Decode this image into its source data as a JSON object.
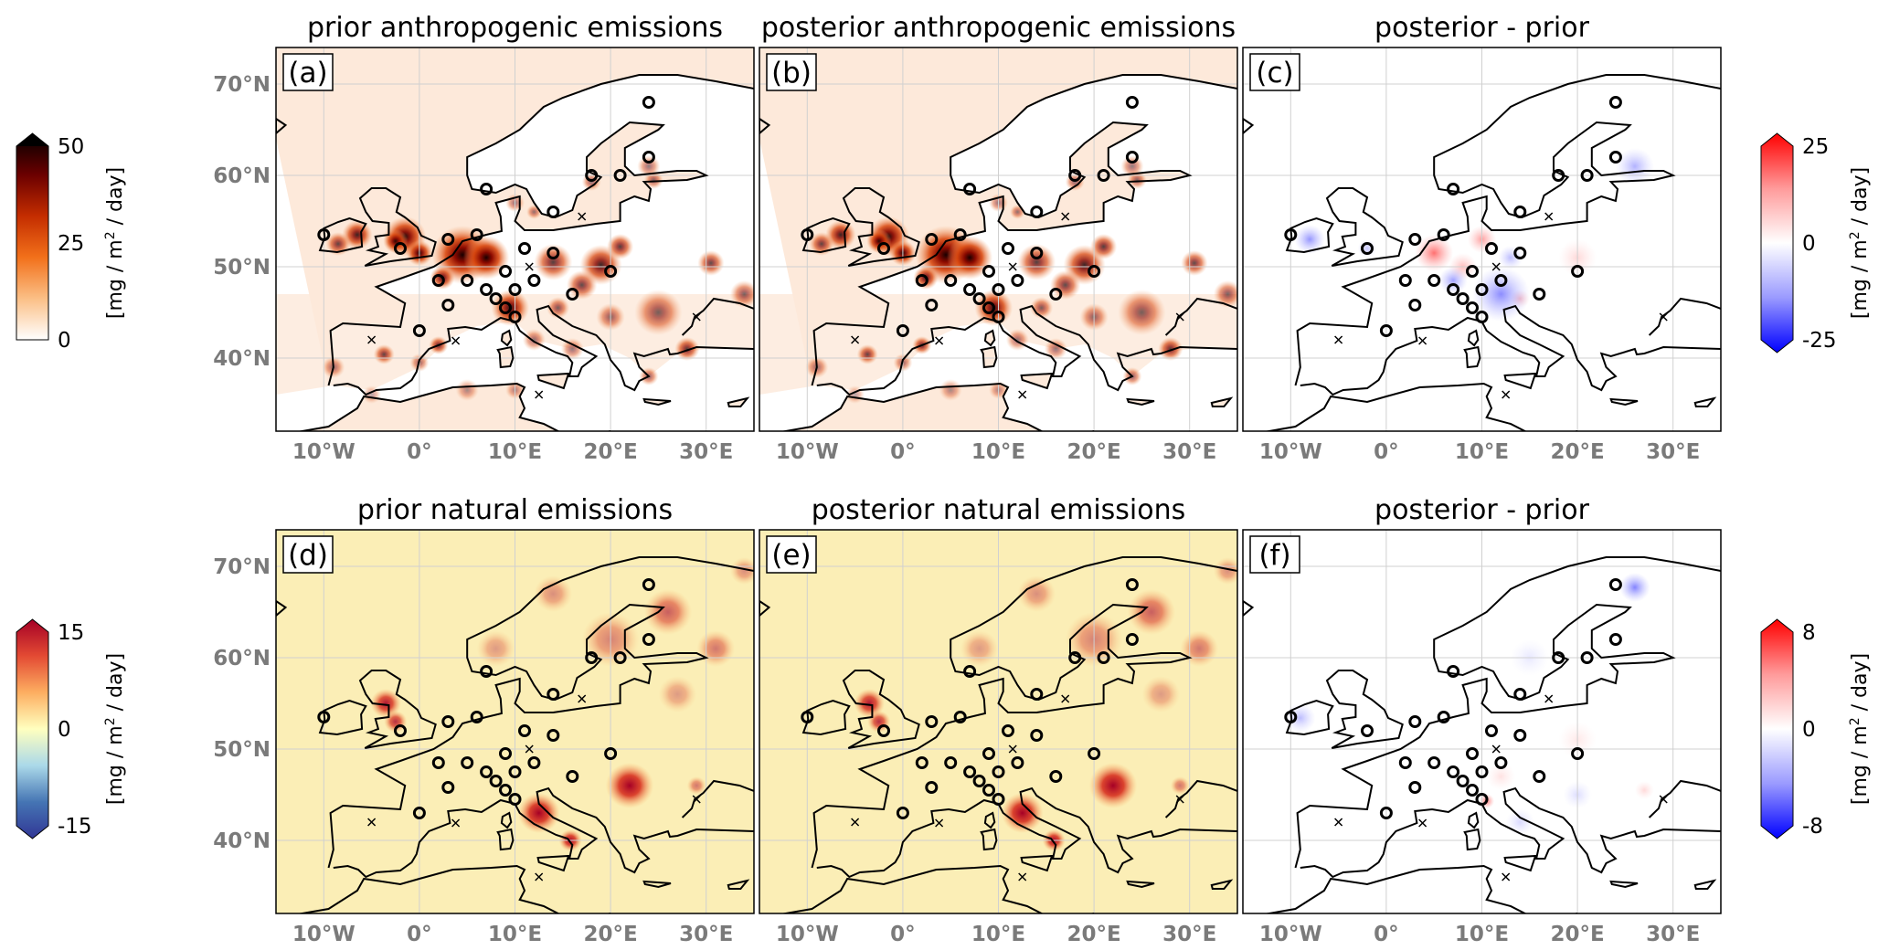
{
  "panels": [
    {
      "id": "a",
      "label": "(a)",
      "title": "prior anthropogenic emissions",
      "kind": "anthro"
    },
    {
      "id": "b",
      "label": "(b)",
      "title": "posterior anthropogenic emissions",
      "kind": "anthro"
    },
    {
      "id": "c",
      "label": "(c)",
      "title": "posterior - prior",
      "kind": "diff1"
    },
    {
      "id": "d",
      "label": "(d)",
      "title": "prior natural emissions",
      "kind": "natural"
    },
    {
      "id": "e",
      "label": "(e)",
      "title": "posterior natural emissions",
      "kind": "natural"
    },
    {
      "id": "f",
      "label": "(f)",
      "title": "posterior - prior",
      "kind": "diff2"
    }
  ],
  "axes": {
    "lon_ticks": [
      "10°W",
      "0°",
      "10°E",
      "20°E",
      "30°E"
    ],
    "lat_ticks": [
      "70°N",
      "60°N",
      "50°N",
      "40°N"
    ]
  },
  "colorbars": [
    {
      "id": "anthro",
      "max": "50",
      "mid": "25",
      "min": "0",
      "label_pre": "[mg / m",
      "label_sup": "2",
      "label_post": " / day]",
      "colors": [
        "#000000",
        "#6b0000",
        "#c42d00",
        "#f2701a",
        "#fbbf86",
        "#ffffff"
      ]
    },
    {
      "id": "diff1",
      "max": "25",
      "mid": "0",
      "min": "-25",
      "label_pre": "[mg / m",
      "label_sup": "2",
      "label_post": " / day]",
      "colors": [
        "#ff0000",
        "#ff9a9a",
        "#ffffff",
        "#9a9aff",
        "#0000ff"
      ]
    },
    {
      "id": "natural",
      "max": "15",
      "mid": "0",
      "min": "-15",
      "label_pre": "[mg / m",
      "label_sup": "2",
      "label_post": " / day]",
      "colors": [
        "#a50026",
        "#e34a33",
        "#fdae61",
        "#ffffbf",
        "#abd9e9",
        "#4575b4",
        "#313695"
      ]
    },
    {
      "id": "diff2",
      "max": "8",
      "mid": "0",
      "min": "-8",
      "label_pre": "[mg / m",
      "label_sup": "2",
      "label_post": " / day]",
      "colors": [
        "#ff0000",
        "#ff9a9a",
        "#ffffff",
        "#9a9aff",
        "#0000ff"
      ]
    }
  ],
  "map_colors": {
    "ocean": "#ffffff",
    "natural_land": "#fbeeb6",
    "anthro_land": "#fde9da",
    "coast": "#000000",
    "grid": "#d0d0d0"
  },
  "stations": [
    [
      24,
      68
    ],
    [
      24,
      62
    ],
    [
      7,
      58.5
    ],
    [
      18,
      60
    ],
    [
      21,
      60
    ],
    [
      14,
      56
    ],
    [
      -10,
      53.5
    ],
    [
      -2,
      52
    ],
    [
      3,
      53
    ],
    [
      6,
      53.5
    ],
    [
      11,
      52
    ],
    [
      14,
      51.5
    ],
    [
      20,
      49.5
    ],
    [
      9,
      49.5
    ],
    [
      12,
      48.5
    ],
    [
      2,
      48.5
    ],
    [
      5,
      48.5
    ],
    [
      7,
      47.5
    ],
    [
      10,
      47.5
    ],
    [
      16,
      47
    ],
    [
      8,
      46.5
    ],
    [
      9,
      45.5
    ],
    [
      10,
      44.5
    ],
    [
      3,
      45.8
    ],
    [
      0,
      43
    ]
  ],
  "crosses": [
    [
      -5,
      42
    ],
    [
      3.8,
      41.9
    ],
    [
      12.5,
      36
    ],
    [
      11.5,
      50
    ],
    [
      17,
      55.5
    ],
    [
      29,
      44.5
    ]
  ]
}
